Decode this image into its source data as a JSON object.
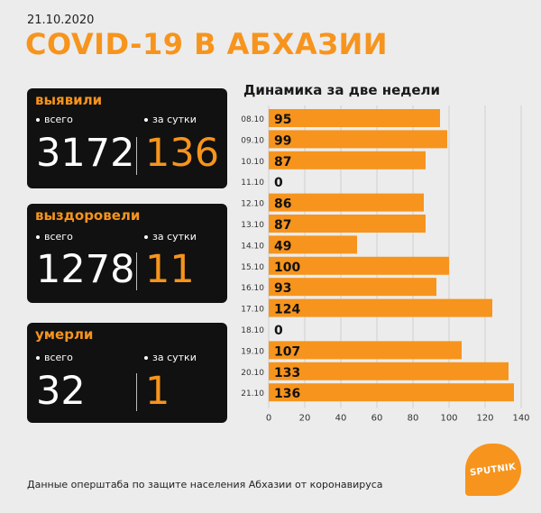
{
  "date": "21.10.2020",
  "title": "COVID-19 В АБХАЗИИ",
  "cards": [
    {
      "label": "выявили",
      "total_label": "всего",
      "day_label": "за сутки",
      "total": "3172",
      "day": "136"
    },
    {
      "label": "выздоровели",
      "total_label": "всего",
      "day_label": "за сутки",
      "total": "1278",
      "day": "11"
    },
    {
      "label": "умерли",
      "total_label": "всего",
      "day_label": "за сутки",
      "total": "32",
      "day": "1"
    }
  ],
  "footer": "Данные оперштаба по защите населения Абхазии от коронавируса",
  "logo_text": "SPUTNIK",
  "colors": {
    "accent": "#f7941d",
    "card": "#111111",
    "background": "#ececec"
  },
  "chart_data": {
    "type": "bar",
    "orientation": "horizontal",
    "title": "Динамика за две недели",
    "categories": [
      "08.10",
      "09.10",
      "10.10",
      "11.10",
      "12.10",
      "13.10",
      "14.10",
      "15.10",
      "16.10",
      "17.10",
      "18.10",
      "19.10",
      "20.10",
      "21.10"
    ],
    "values": [
      95,
      99,
      87,
      0,
      86,
      87,
      49,
      100,
      93,
      124,
      0,
      107,
      133,
      136
    ],
    "xlim": [
      0,
      140
    ],
    "xticks": [
      0,
      20,
      40,
      60,
      80,
      100,
      120,
      140
    ],
    "grid": true,
    "color": "#f7941d"
  }
}
